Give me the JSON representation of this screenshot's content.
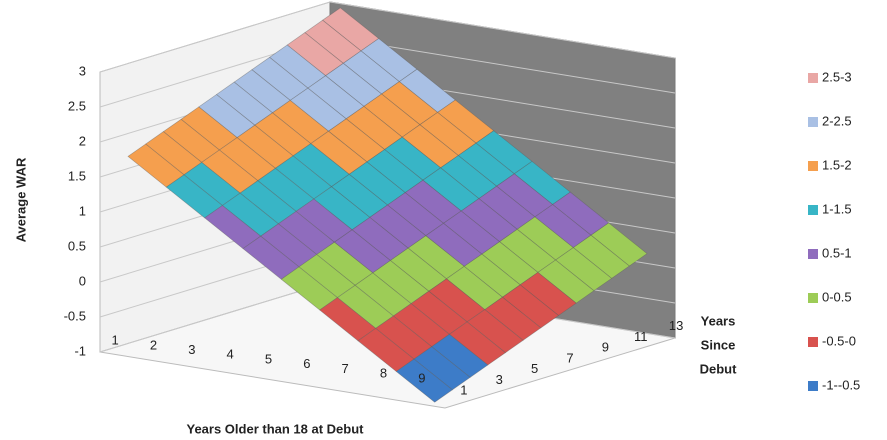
{
  "chart_data": {
    "type": "surface",
    "y_label": "Average WAR",
    "x_label": "Years Older than 18 at Debut",
    "depth_label": [
      "Years",
      "Since",
      "Debut"
    ],
    "categories": [
      1,
      2,
      3,
      4,
      5,
      6,
      7,
      8,
      9
    ],
    "depth_categories": [
      1,
      null,
      3,
      null,
      5,
      null,
      7,
      null,
      9,
      null,
      11,
      null,
      13
    ],
    "values": [
      [
        1.8,
        1.9,
        2,
        2.1,
        2.2,
        2.3,
        2.4,
        2.5,
        2.6,
        2.7,
        2.8,
        2.9,
        3
      ],
      [
        1.45,
        1.55,
        1.65,
        1.75,
        1.85,
        1.95,
        2.05,
        2.15,
        2.25,
        2.35,
        2.45,
        2.55,
        2.65
      ],
      [
        1.1,
        1.2,
        1.3,
        1.4,
        1.5,
        1.6,
        1.7,
        1.8,
        1.9,
        2,
        2.1,
        2.2,
        2.3
      ],
      [
        0.75,
        0.85,
        0.95,
        1.05,
        1.15,
        1.25,
        1.35,
        1.45,
        1.55,
        1.65,
        1.75,
        1.85,
        1.95
      ],
      [
        0.4,
        0.5,
        0.6,
        0.7,
        0.8,
        0.9,
        1,
        1.1,
        1.2,
        1.3,
        1.4,
        1.5,
        1.6
      ],
      [
        0.05,
        0.15,
        0.25,
        0.35,
        0.45,
        0.55,
        0.65,
        0.75,
        0.85,
        0.95,
        1.05,
        1.15,
        1.25
      ],
      [
        -0.3,
        -0.2,
        -0.1,
        0,
        0.1,
        0.2,
        0.3,
        0.4,
        0.5,
        0.6,
        0.7,
        0.8,
        0.9
      ],
      [
        -0.65,
        -0.55,
        -0.45,
        -0.35,
        -0.25,
        -0.15,
        -0.05,
        0.05,
        0.15,
        0.25,
        0.35,
        0.45,
        0.55
      ],
      [
        -1,
        -0.9,
        -0.8,
        -0.7,
        -0.6,
        -0.5,
        -0.4,
        -0.3,
        -0.2,
        -0.1,
        0,
        0.1,
        0.2
      ]
    ],
    "zlim": [
      -1,
      3
    ],
    "zticks": [
      -1,
      -0.5,
      0,
      0.5,
      1,
      1.5,
      2,
      2.5,
      3
    ],
    "grid": true,
    "legend": "right",
    "series": [
      {
        "name": "2.5-3",
        "color": "#e9a7a5"
      },
      {
        "name": "2-2.5",
        "color": "#a9c0e4"
      },
      {
        "name": "1.5-2",
        "color": "#f59f4e"
      },
      {
        "name": "1-1.5",
        "color": "#38b5c6"
      },
      {
        "name": "0.5-1",
        "color": "#8f6cbd"
      },
      {
        "name": "0-0.5",
        "color": "#9dcc57"
      },
      {
        "name": "-0.5-0",
        "color": "#d8524e"
      },
      {
        "name": "-1--0.5",
        "color": "#3d7cc8"
      }
    ]
  }
}
